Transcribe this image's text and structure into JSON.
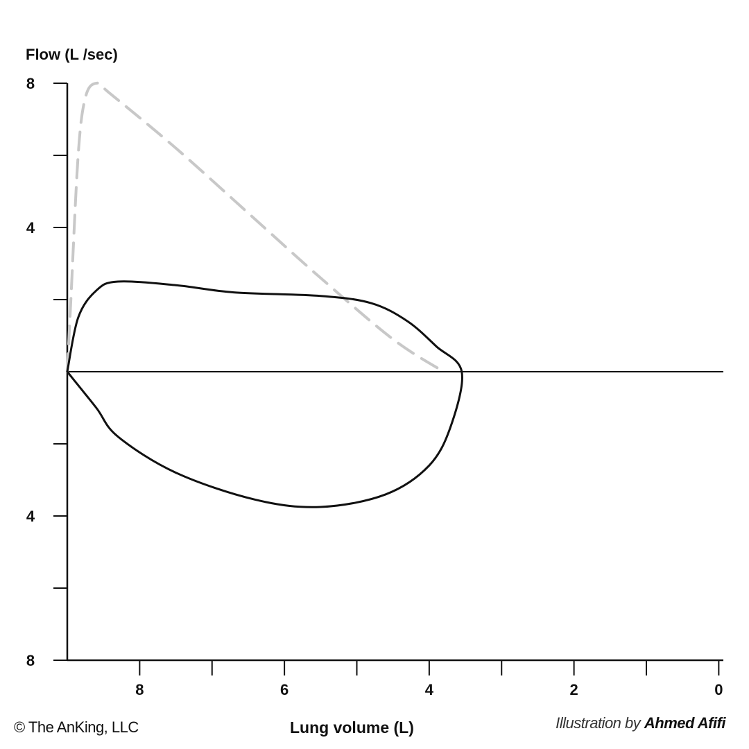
{
  "chart_data": {
    "type": "line",
    "ylabel": "Flow (L /sec)",
    "xlabel": "Lung volume (L)",
    "x_axis": {
      "reversed": true,
      "range": [
        9.0,
        0
      ],
      "tick_values": [
        9,
        8,
        7,
        6,
        5,
        4,
        3,
        2,
        1,
        0
      ],
      "tick_labels": [
        {
          "value": 8,
          "label": "8"
        },
        {
          "value": 6,
          "label": "6"
        },
        {
          "value": 4,
          "label": "4"
        },
        {
          "value": 2,
          "label": "2"
        },
        {
          "value": 0,
          "label": "0"
        }
      ]
    },
    "y_axis": {
      "range": [
        -8,
        8
      ],
      "tick_values": [
        8,
        6,
        4,
        2,
        0,
        -2,
        -4,
        -6,
        -8
      ],
      "tick_labels": [
        {
          "value": 8,
          "label": "8"
        },
        {
          "value": 4,
          "label": "4"
        },
        {
          "value": -4,
          "label": "4"
        },
        {
          "value": -8,
          "label": "8"
        }
      ]
    },
    "series": [
      {
        "style": "dashed-gray",
        "color": "#c8c8c8",
        "points": [
          [
            9.0,
            0
          ],
          [
            8.95,
            2.0
          ],
          [
            8.85,
            6.0
          ],
          [
            8.75,
            7.6
          ],
          [
            8.6,
            8.0
          ],
          [
            8.4,
            7.7
          ],
          [
            7.5,
            6.2
          ],
          [
            6.5,
            4.4
          ],
          [
            5.5,
            2.6
          ],
          [
            4.5,
            0.9
          ],
          [
            3.8,
            0
          ]
        ]
      },
      {
        "style": "solid-black",
        "color": "#111111",
        "points": [
          [
            9.0,
            0
          ],
          [
            8.85,
            1.5
          ],
          [
            8.6,
            2.25
          ],
          [
            8.3,
            2.5
          ],
          [
            7.5,
            2.4
          ],
          [
            6.7,
            2.2
          ],
          [
            5.5,
            2.1
          ],
          [
            4.8,
            1.9
          ],
          [
            4.3,
            1.4
          ],
          [
            3.9,
            0.7
          ],
          [
            3.55,
            0
          ],
          [
            3.7,
            -1.5
          ],
          [
            4.0,
            -2.6
          ],
          [
            4.6,
            -3.4
          ],
          [
            5.5,
            -3.75
          ],
          [
            6.4,
            -3.55
          ],
          [
            7.5,
            -2.8
          ],
          [
            8.3,
            -1.8
          ],
          [
            8.6,
            -1.0
          ],
          [
            9.0,
            0
          ]
        ]
      }
    ]
  },
  "footer": {
    "copyright": "© The AnKing, LLC",
    "credit_prefix": "Illustration by ",
    "credit_name": "Ahmed Afifi"
  }
}
